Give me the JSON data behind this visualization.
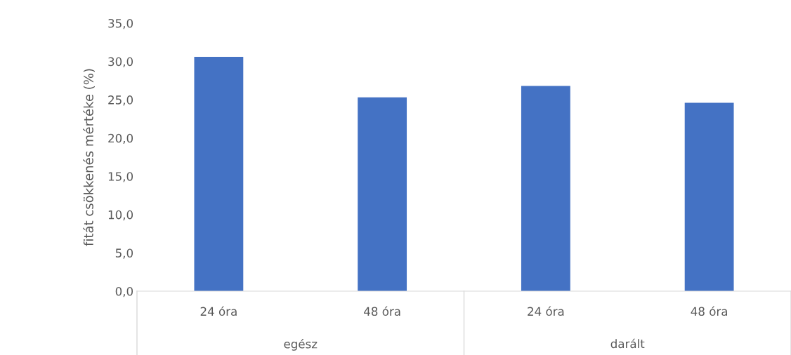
{
  "chart_data": {
    "type": "bar",
    "ylabel": "fitát csökkenés mértéke (%)",
    "categories": [
      "24 óra",
      "48 óra",
      "24 óra",
      "48 óra"
    ],
    "values": [
      30.6,
      25.3,
      26.8,
      24.6
    ],
    "color": "#4472c4",
    "ylim": [
      0,
      35
    ],
    "yticks": [
      {
        "value": 0,
        "label": "0,0"
      },
      {
        "value": 5,
        "label": "5,0"
      },
      {
        "value": 10,
        "label": "10,0"
      },
      {
        "value": 15,
        "label": "15,0"
      },
      {
        "value": 20,
        "label": "20,0"
      },
      {
        "value": 25,
        "label": "25,0"
      },
      {
        "value": 30,
        "label": "30,0"
      },
      {
        "value": 35,
        "label": "35,0"
      }
    ],
    "annotations": [
      "egész",
      "darált"
    ],
    "grid": false
  }
}
